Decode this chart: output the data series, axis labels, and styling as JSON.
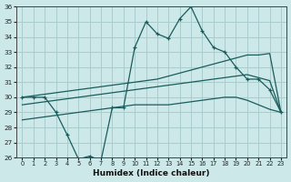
{
  "xlabel": "Humidex (Indice chaleur)",
  "background_color": "#cce8e8",
  "grid_color": "#aacccc",
  "line_color": "#1a5c5c",
  "x_data": [
    0,
    1,
    2,
    3,
    4,
    5,
    6,
    7,
    8,
    9,
    10,
    11,
    12,
    13,
    14,
    15,
    16,
    17,
    18,
    19,
    20,
    21,
    22,
    23
  ],
  "y_main": [
    30.0,
    30.0,
    30.0,
    29.0,
    27.5,
    25.9,
    26.1,
    25.8,
    29.3,
    29.3,
    33.3,
    35.0,
    34.2,
    33.9,
    35.2,
    36.0,
    34.4,
    33.3,
    33.0,
    32.0,
    31.2,
    31.2,
    30.5,
    29.0
  ],
  "y_upper": [
    30.0,
    30.1,
    30.2,
    30.3,
    30.4,
    30.5,
    30.6,
    30.7,
    30.8,
    30.9,
    31.0,
    31.1,
    31.2,
    31.4,
    31.6,
    31.8,
    32.0,
    32.2,
    32.4,
    32.6,
    32.8,
    32.8,
    32.9,
    29.0
  ],
  "y_mid": [
    29.5,
    29.6,
    29.7,
    29.8,
    29.9,
    30.0,
    30.1,
    30.2,
    30.3,
    30.4,
    30.5,
    30.6,
    30.7,
    30.8,
    30.9,
    31.0,
    31.1,
    31.2,
    31.3,
    31.4,
    31.5,
    31.3,
    31.1,
    29.0
  ],
  "y_lower": [
    28.5,
    28.6,
    28.7,
    28.8,
    28.9,
    29.0,
    29.1,
    29.2,
    29.3,
    29.4,
    29.5,
    29.5,
    29.5,
    29.5,
    29.6,
    29.7,
    29.8,
    29.9,
    30.0,
    30.0,
    29.8,
    29.5,
    29.2,
    29.0
  ],
  "ylim": [
    26,
    36
  ],
  "xlim": [
    -0.5,
    23.5
  ],
  "yticks": [
    26,
    27,
    28,
    29,
    30,
    31,
    32,
    33,
    34,
    35,
    36
  ],
  "xticks": [
    0,
    1,
    2,
    3,
    4,
    5,
    6,
    7,
    8,
    9,
    10,
    11,
    12,
    13,
    14,
    15,
    16,
    17,
    18,
    19,
    20,
    21,
    22,
    23
  ]
}
